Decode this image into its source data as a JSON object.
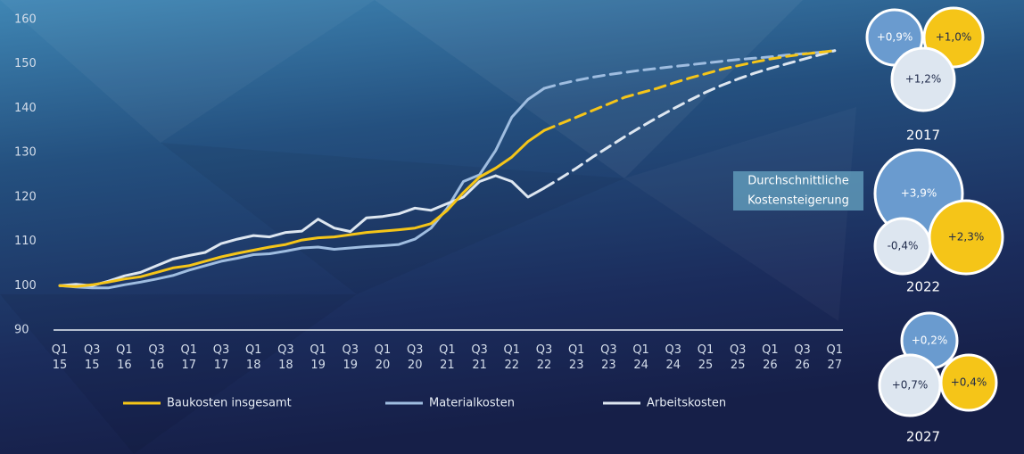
{
  "chart_data": {
    "type": "line",
    "categories": [
      "Q1 15",
      null,
      "Q3 15",
      null,
      "Q1 16",
      null,
      "Q3 16",
      null,
      "Q1 17",
      null,
      "Q3 17",
      null,
      "Q1 18",
      null,
      "Q3 18",
      null,
      "Q1 19",
      null,
      "Q3 19",
      null,
      "Q1 20",
      null,
      "Q3 20",
      null,
      "Q1 21",
      null,
      "Q3 21",
      null,
      "Q1 22",
      null,
      "Q3 22",
      null,
      "Q1 23",
      null,
      "Q3 23",
      null,
      "Q1 24",
      null,
      "Q3 24",
      null,
      "Q1 25",
      null,
      "Q3 25",
      null,
      "Q1 26",
      null,
      "Q3 26",
      null,
      "Q1 27"
    ],
    "series": [
      {
        "name": "Baukosten insgesamt",
        "color": "#f5c518",
        "values": [
          100,
          99.8,
          100.2,
          100.8,
          101.5,
          102,
          103,
          104,
          104.5,
          105.5,
          106.5,
          107.3,
          108,
          108.7,
          109.3,
          110.3,
          110.8,
          111,
          111.5,
          112,
          112.3,
          112.6,
          113,
          114,
          117,
          121,
          124.5,
          126.5,
          129,
          132.5,
          135,
          null,
          null,
          null,
          null,
          null,
          null,
          null,
          null,
          null,
          null,
          null,
          null,
          null,
          null,
          null,
          null,
          null,
          null
        ],
        "forecast_values": [
          null,
          null,
          null,
          null,
          null,
          null,
          null,
          null,
          null,
          null,
          null,
          null,
          null,
          null,
          null,
          null,
          null,
          null,
          null,
          null,
          null,
          null,
          null,
          null,
          null,
          null,
          null,
          null,
          null,
          null,
          135,
          136.5,
          138,
          139.5,
          141,
          142.5,
          143.5,
          144.5,
          145.7,
          146.8,
          147.8,
          148.8,
          149.6,
          150.4,
          151.1,
          151.7,
          152.2,
          152.6,
          153
        ]
      },
      {
        "name": "Materialkosten",
        "color": "#9fbde0",
        "values": [
          100,
          99.7,
          99.5,
          99.5,
          100.2,
          100.8,
          101.5,
          102.3,
          103.5,
          104.5,
          105.5,
          106.2,
          107,
          107.2,
          107.8,
          108.5,
          108.7,
          108.2,
          108.5,
          108.8,
          109,
          109.3,
          110.5,
          113,
          117.5,
          123.5,
          125,
          130.5,
          138,
          142,
          144.5,
          null,
          null,
          null,
          null,
          null,
          null,
          null,
          null,
          null,
          null,
          null,
          null,
          null,
          null,
          null,
          null,
          null,
          null
        ],
        "forecast_values": [
          null,
          null,
          null,
          null,
          null,
          null,
          null,
          null,
          null,
          null,
          null,
          null,
          null,
          null,
          null,
          null,
          null,
          null,
          null,
          null,
          null,
          null,
          null,
          null,
          null,
          null,
          null,
          null,
          null,
          null,
          144.5,
          145.5,
          146.3,
          147,
          147.6,
          148.1,
          148.6,
          149,
          149.4,
          149.8,
          150.2,
          150.6,
          151,
          151.3,
          151.6,
          152,
          152.3,
          152.6,
          153
        ]
      },
      {
        "name": "Arbeitskosten",
        "color": "#dde6f0",
        "values": [
          100,
          100.3,
          100,
          101,
          102.2,
          103,
          104.5,
          106,
          106.8,
          107.5,
          109.5,
          110.5,
          111.3,
          111,
          112,
          112.3,
          115,
          113,
          112.2,
          115.3,
          115.6,
          116.2,
          117.5,
          117,
          118.5,
          120,
          123.5,
          124.8,
          123.5,
          120,
          122,
          null,
          null,
          null,
          null,
          null,
          null,
          null,
          null,
          null,
          null,
          null,
          null,
          null,
          null,
          null,
          null,
          null,
          null
        ],
        "forecast_values": [
          null,
          null,
          null,
          null,
          null,
          null,
          null,
          null,
          null,
          null,
          null,
          null,
          null,
          null,
          null,
          null,
          null,
          null,
          null,
          null,
          null,
          null,
          null,
          null,
          null,
          null,
          null,
          null,
          null,
          null,
          122,
          124.2,
          126.5,
          129,
          131.3,
          133.6,
          135.8,
          137.9,
          139.9,
          141.8,
          143.6,
          145.2,
          146.6,
          147.9,
          149,
          150,
          151,
          152,
          153
        ]
      }
    ],
    "ylim": [
      90,
      160
    ],
    "yticks": [
      90,
      100,
      110,
      120,
      130,
      140,
      150,
      160
    ],
    "callout": [
      "Durchschnittliche",
      "Kostensteigerung"
    ],
    "bubble_groups": [
      {
        "year": "2017",
        "labels": [
          "+0,9%",
          "+1,0%",
          "+1,2%"
        ]
      },
      {
        "year": "2022",
        "labels": [
          "+3,9%",
          "-0,4%",
          "+2,3%"
        ]
      },
      {
        "year": "2027",
        "labels": [
          "+0,2%",
          "+0,7%",
          "+0,4%"
        ]
      }
    ]
  }
}
